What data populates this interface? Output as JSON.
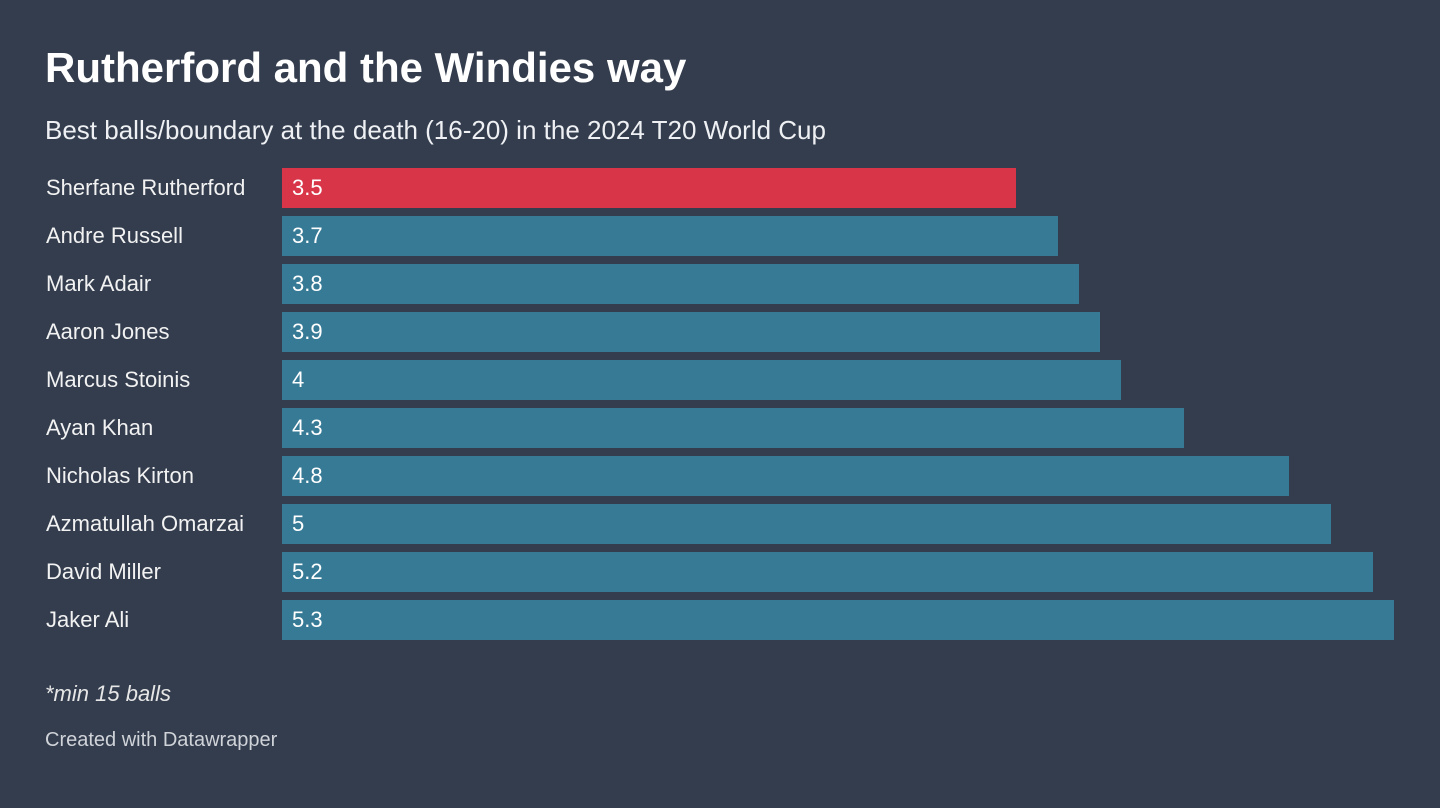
{
  "chart_data": {
    "type": "bar",
    "title": "Rutherford and the Windies way",
    "subtitle": "Best balls/boundary at the death (16-20) in the 2024 T20 World Cup",
    "categories": [
      "Sherfane Rutherford",
      "Andre Russell",
      "Mark Adair",
      "Aaron Jones",
      "Marcus Stoinis",
      "Ayan Khan",
      "Nicholas Kirton",
      "Azmatullah Omarzai",
      "David Miller",
      "Jaker Ali"
    ],
    "values": [
      3.5,
      3.7,
      3.8,
      3.9,
      4,
      4.3,
      4.8,
      5,
      5.2,
      5.3
    ],
    "highlight": "Sherfane Rutherford",
    "xlim": [
      0,
      5.3
    ],
    "colors": {
      "highlight": "#d93549",
      "default": "#377a95"
    }
  },
  "note": "*min 15 balls",
  "credit": "Created with Datawrapper"
}
